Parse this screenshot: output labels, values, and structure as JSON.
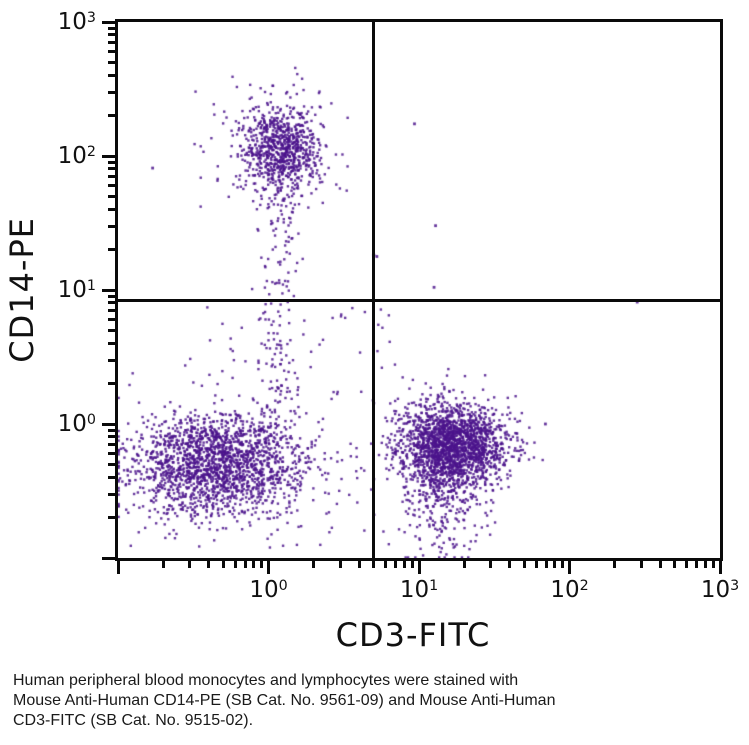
{
  "chart_data": {
    "type": "scatter",
    "title": "",
    "xlabel": "CD3-FITC",
    "ylabel": "CD14-PE",
    "x_scale": "log",
    "y_scale": "log",
    "x_log_range": [
      -1,
      3
    ],
    "y_log_range": [
      -1,
      3
    ],
    "tick_base": "10",
    "x_tick_exponents": [
      0,
      1,
      2,
      3
    ],
    "y_tick_exponents": [
      0,
      1,
      2,
      3
    ],
    "grid": false,
    "legend": null,
    "quadrant_gates": {
      "x": 5,
      "y": 8.3
    },
    "dot_color": "#4b148c",
    "axis_color": "#0a0a0a",
    "background_color": "#ffffff",
    "seed": 20,
    "populations": [
      {
        "name": "monocytes-CD14pos-CD3neg",
        "center_log": [
          0.08,
          2.05
        ],
        "sigma_log": [
          0.12,
          0.15
        ],
        "count": 700
      },
      {
        "name": "monocytes-halo",
        "center_log": [
          0.08,
          2.02
        ],
        "sigma_log": [
          0.22,
          0.27
        ],
        "count": 170
      },
      {
        "name": "lymphocytes-CD3neg-CD14neg",
        "center_log": [
          -0.34,
          -0.3
        ],
        "sigma_log": [
          0.3,
          0.19
        ],
        "count": 1900
      },
      {
        "name": "lymphocytes-CD3pos",
        "center_log": [
          1.22,
          -0.16
        ],
        "sigma_log": [
          0.18,
          0.16
        ],
        "count": 1950
      },
      {
        "name": "lymphocytes-CD3pos-tail",
        "center_log": [
          1.17,
          -0.55
        ],
        "sigma_log": [
          0.13,
          0.22
        ],
        "count": 260
      }
    ],
    "trails": [
      {
        "name": "monocyte-debris-trail",
        "x_center_log": 0.07,
        "x_sigma_log": 0.07,
        "y_uniform_log": [
          0.05,
          1.9
        ],
        "count": 150
      }
    ],
    "background": [
      {
        "name": "sparse-lower-band",
        "x_uniform_log": [
          -0.95,
          1.6
        ],
        "y_uniform_log": [
          -0.98,
          0.35
        ],
        "count": 110
      },
      {
        "name": "sparse-mid-band",
        "x_uniform_log": [
          -0.6,
          0.9
        ],
        "y_uniform_log": [
          0.35,
          0.9
        ],
        "count": 40
      }
    ],
    "strays_log": [
      [
        0.97,
        2.24
      ],
      [
        1.11,
        1.48
      ],
      [
        0.7,
        1.26
      ],
      [
        0.72,
        1.25
      ],
      [
        1.1,
        1.02
      ],
      [
        2.45,
        0.91
      ],
      [
        -0.77,
        1.91
      ],
      [
        1.84,
        0.0
      ]
    ]
  },
  "caption": {
    "lines": [
      "Human peripheral blood monocytes and lymphocytes were stained with",
      "Mouse Anti-Human CD14-PE (SB Cat. No. 9561-09) and Mouse Anti-Human",
      "CD3-FITC (SB Cat. No. 9515-02)."
    ]
  }
}
